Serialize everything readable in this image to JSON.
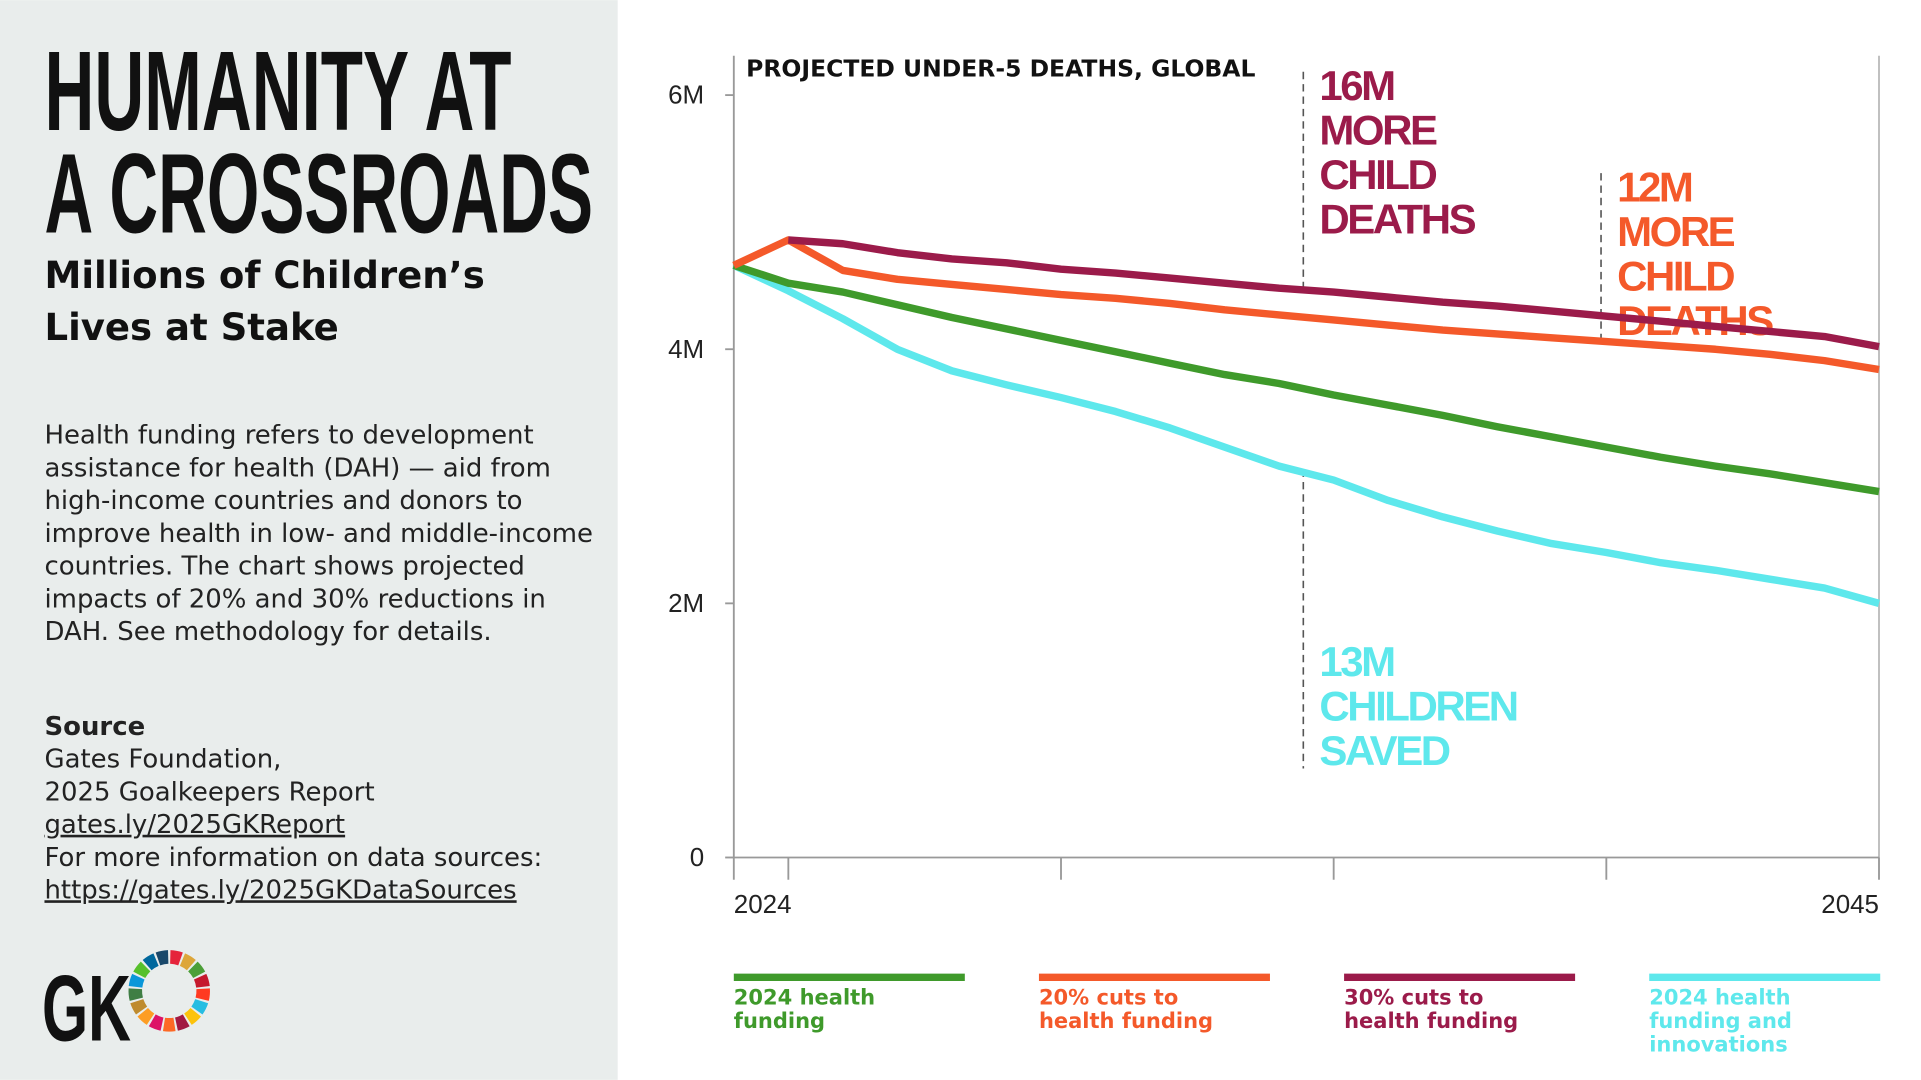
{
  "sidebar": {
    "title_lines": [
      "HUMANITY AT",
      "A CROSSROADS"
    ],
    "subtitle_lines": [
      "Millions of Children’s",
      "Lives at Stake"
    ],
    "body_lines": [
      "Health funding refers to development",
      "assistance for health (DAH) — aid from",
      "high-income countries and donors to",
      "improve health in low- and middle-income",
      "countries. The chart shows projected",
      "impacts of 20% and 30% reductions in",
      "DAH. See methodology for details."
    ],
    "source_heading": "Source",
    "source_lines": [
      "Gates Foundation,",
      "2025 Goalkeepers Report"
    ],
    "report_link": "gates.ly/2025GKReport",
    "more_info": "For more information on data sources:",
    "sources_link": "https://gates.ly/2025GKDataSources",
    "logo": "GK"
  },
  "chart_data": {
    "type": "line",
    "title": "PROJECTED UNDER-5 DEATHS, GLOBAL",
    "x": [
      2024,
      2025,
      2026,
      2027,
      2028,
      2029,
      2030,
      2031,
      2032,
      2033,
      2034,
      2035,
      2036,
      2037,
      2038,
      2039,
      2040,
      2041,
      2042,
      2043,
      2044,
      2045
    ],
    "xlim": [
      2024,
      2045
    ],
    "xticks": [
      2024,
      2045
    ],
    "xminorticks": [
      2025,
      2030,
      2035,
      2040
    ],
    "ylim": [
      0,
      6.3
    ],
    "yticks": [
      0,
      {
        "value": 2,
        "label": "2M"
      },
      {
        "value": 4,
        "label": "4M"
      },
      {
        "value": 6,
        "label": "6M"
      }
    ],
    "series": [
      {
        "name": "2024 health funding",
        "color": "#3f9a2b",
        "values": [
          4.66,
          4.52,
          4.45,
          4.35,
          4.25,
          4.16,
          4.07,
          3.98,
          3.89,
          3.8,
          3.73,
          3.64,
          3.56,
          3.48,
          3.39,
          3.31,
          3.23,
          3.15,
          3.08,
          3.02,
          2.95,
          2.88
        ]
      },
      {
        "name": "20% cuts to health funding",
        "color": "#f4592a",
        "values": [
          4.66,
          4.86,
          4.62,
          4.55,
          4.51,
          4.47,
          4.43,
          4.4,
          4.36,
          4.31,
          4.27,
          4.23,
          4.19,
          4.15,
          4.12,
          4.09,
          4.06,
          4.03,
          4.0,
          3.96,
          3.91,
          3.84
        ]
      },
      {
        "name": "30% cuts to health funding",
        "color": "#9b1b4a",
        "values": [
          null,
          4.86,
          4.83,
          4.76,
          4.71,
          4.68,
          4.63,
          4.6,
          4.56,
          4.52,
          4.48,
          4.45,
          4.41,
          4.37,
          4.34,
          4.3,
          4.26,
          4.22,
          4.18,
          4.14,
          4.1,
          4.02
        ]
      },
      {
        "name": "2024 health funding and innovations",
        "color": "#5ee8ec",
        "values": [
          4.66,
          4.46,
          4.24,
          4.0,
          3.83,
          3.72,
          3.62,
          3.51,
          3.38,
          3.23,
          3.08,
          2.97,
          2.81,
          2.68,
          2.57,
          2.47,
          2.4,
          2.32,
          2.26,
          2.19,
          2.12,
          2.0
        ]
      }
    ],
    "annotations": [
      {
        "text": "16M MORE CHILD DEATHS",
        "color": "#9b1b4a"
      },
      {
        "text": "12M MORE CHILD DEATHS",
        "color": "#f4592a"
      },
      {
        "text": "13M CHILDREN SAVED",
        "color": "#5ee8ec"
      }
    ]
  }
}
